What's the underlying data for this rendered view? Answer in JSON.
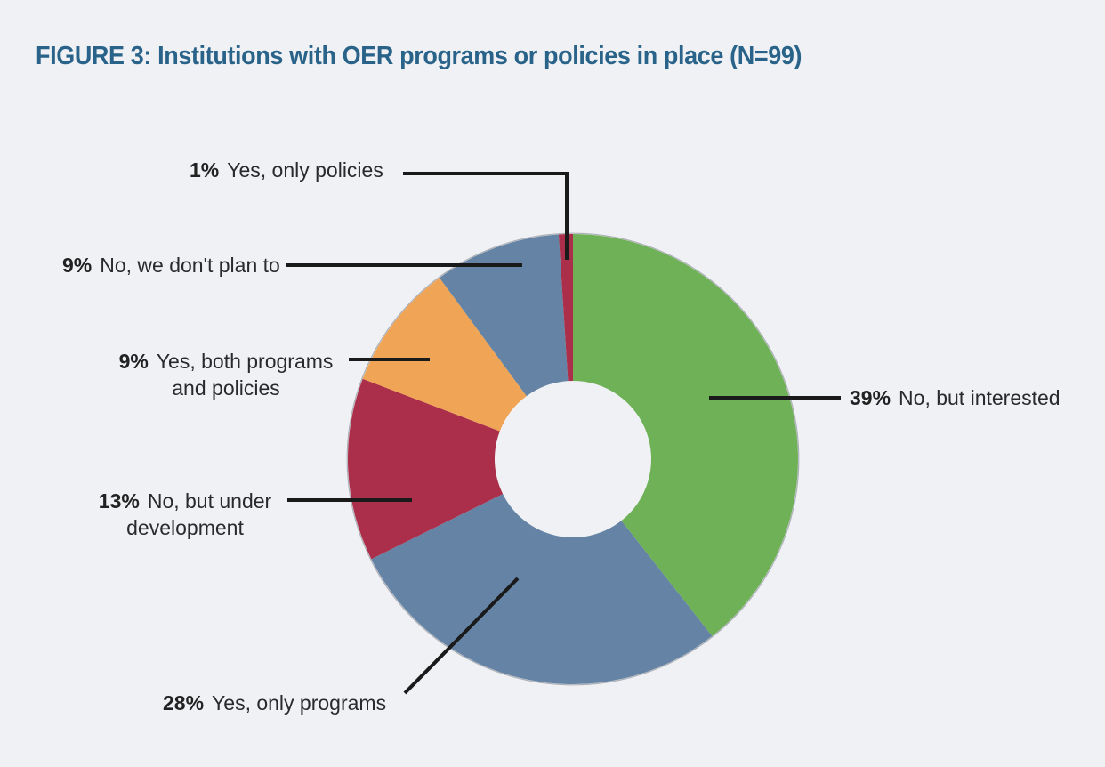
{
  "page": {
    "background_color": "#eff1f5"
  },
  "title": {
    "text": "FIGURE 3: Institutions with OER programs or policies in place (N=99)",
    "color": "#2a6389"
  },
  "chart_data": {
    "type": "pie",
    "subtype": "donut",
    "title": "FIGURE 3: Institutions with OER programs or policies in place (N=99)",
    "sample_size_label": "N=99",
    "units": "percent",
    "start_angle_deg": 0,
    "direction": "clockwise",
    "total": 99,
    "legend_position": "callout-labels",
    "hole_radius_ratio": 0.35,
    "leader_line_color": "#1a1a1a",
    "slices": [
      {
        "label": "No, but interested",
        "value": 39,
        "pct": "39%",
        "color": "#6fb156",
        "callout_line1": "No, but interested",
        "callout_line2": ""
      },
      {
        "label": "Yes, only programs",
        "value": 28,
        "pct": "28%",
        "color": "#6584a5",
        "callout_line1": "Yes, only programs",
        "callout_line2": ""
      },
      {
        "label": "No, but under development",
        "value": 13,
        "pct": "13%",
        "color": "#ab2f4a",
        "callout_line1": "No, but under",
        "callout_line2": "development"
      },
      {
        "label": "Yes, both programs and policies",
        "value": 9,
        "pct": "9%",
        "color": "#f0a455",
        "callout_line1": "Yes, both programs",
        "callout_line2": "and policies"
      },
      {
        "label": "No, we don't plan to",
        "value": 9,
        "pct": "9%",
        "color": "#6584a5",
        "callout_line1": "No, we don't plan to",
        "callout_line2": ""
      },
      {
        "label": "Yes, only policies",
        "value": 1,
        "pct": "1%",
        "color": "#ab2f4a",
        "callout_line1": "Yes, only policies",
        "callout_line2": ""
      }
    ]
  }
}
